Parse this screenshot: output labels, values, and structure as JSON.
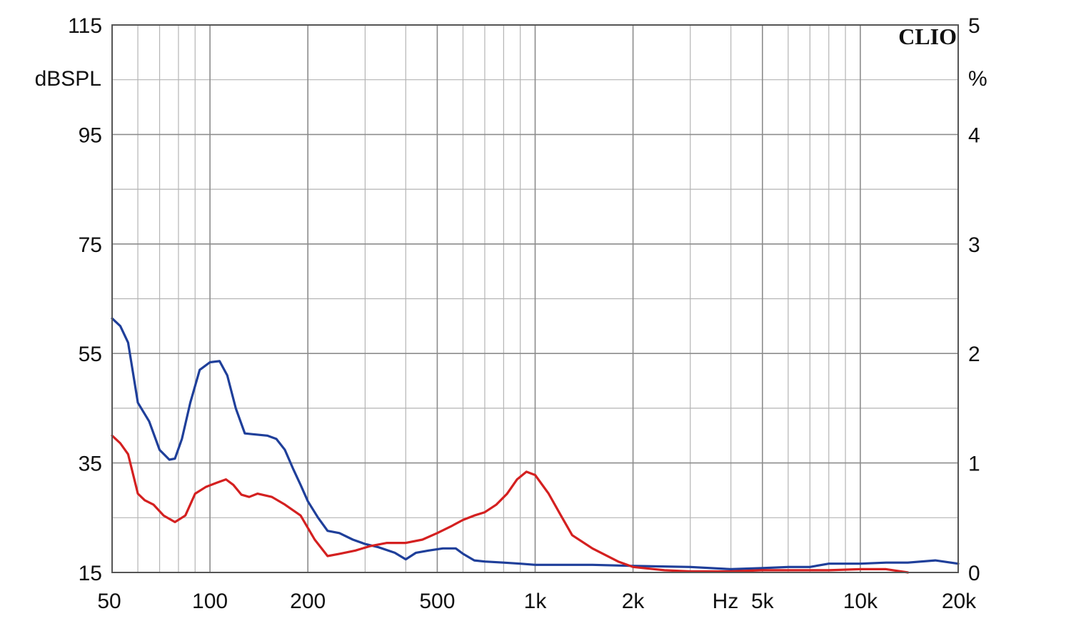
{
  "chart_data": {
    "type": "line",
    "brand": "CLIO",
    "xlabel": "Hz",
    "x_scale": "log",
    "xlim": [
      50,
      20000
    ],
    "x_major_ticks": [
      {
        "value": 50,
        "label": "50"
      },
      {
        "value": 100,
        "label": "100"
      },
      {
        "value": 200,
        "label": "200"
      },
      {
        "value": 500,
        "label": "500"
      },
      {
        "value": 1000,
        "label": "1k"
      },
      {
        "value": 2000,
        "label": "2k"
      },
      {
        "value": 5000,
        "label": "5k"
      },
      {
        "value": 10000,
        "label": "10k"
      },
      {
        "value": 20000,
        "label": "20k"
      }
    ],
    "left_axis": {
      "label": "dBSPL",
      "range": [
        15,
        115
      ],
      "ticks": [
        "115",
        "95",
        "75",
        "55",
        "35",
        "15"
      ]
    },
    "right_axis": {
      "label": "%",
      "range": [
        0,
        5
      ],
      "ticks": [
        "5",
        "4",
        "3",
        "2",
        "1",
        "0"
      ]
    },
    "grid": true,
    "series": [
      {
        "color": "#1f3f9a",
        "axis": "right",
        "x": [
          50,
          53,
          56,
          60,
          65,
          70,
          75,
          78,
          82,
          87,
          93,
          100,
          107,
          113,
          120,
          128,
          138,
          150,
          160,
          170,
          180,
          190,
          200,
          215,
          230,
          250,
          275,
          300,
          330,
          370,
          400,
          430,
          470,
          520,
          570,
          600,
          650,
          700,
          800,
          900,
          1000,
          1200,
          1500,
          2000,
          3000,
          4000,
          5000,
          6000,
          7000,
          8000,
          10000,
          12000,
          14000,
          17000,
          20000
        ],
        "y": [
          2.32,
          2.25,
          2.1,
          1.55,
          1.38,
          1.12,
          1.03,
          1.04,
          1.22,
          1.55,
          1.85,
          1.92,
          1.93,
          1.8,
          1.5,
          1.27,
          1.26,
          1.25,
          1.22,
          1.12,
          0.95,
          0.8,
          0.65,
          0.5,
          0.38,
          0.36,
          0.3,
          0.26,
          0.23,
          0.18,
          0.12,
          0.18,
          0.2,
          0.22,
          0.22,
          0.17,
          0.11,
          0.1,
          0.09,
          0.08,
          0.07,
          0.07,
          0.07,
          0.06,
          0.05,
          0.03,
          0.04,
          0.05,
          0.05,
          0.08,
          0.08,
          0.09,
          0.09,
          0.11,
          0.08
        ]
      },
      {
        "color": "#d42020",
        "axis": "right",
        "x": [
          50,
          53,
          56,
          60,
          63,
          67,
          72,
          78,
          84,
          90,
          97,
          105,
          112,
          118,
          125,
          132,
          140,
          155,
          170,
          190,
          210,
          230,
          250,
          280,
          310,
          350,
          400,
          450,
          500,
          550,
          600,
          650,
          700,
          760,
          820,
          880,
          940,
          1000,
          1100,
          1200,
          1300,
          1500,
          1800,
          2000,
          2500,
          3000,
          4000,
          5000,
          6000,
          8000,
          10000,
          12000,
          14000
        ],
        "y": [
          1.25,
          1.18,
          1.08,
          0.72,
          0.66,
          0.62,
          0.52,
          0.46,
          0.52,
          0.72,
          0.78,
          0.82,
          0.85,
          0.8,
          0.71,
          0.69,
          0.72,
          0.69,
          0.62,
          0.52,
          0.3,
          0.15,
          0.17,
          0.2,
          0.24,
          0.27,
          0.27,
          0.3,
          0.36,
          0.42,
          0.48,
          0.52,
          0.55,
          0.62,
          0.72,
          0.85,
          0.92,
          0.89,
          0.72,
          0.52,
          0.34,
          0.22,
          0.1,
          0.05,
          0.02,
          0.01,
          0.01,
          0.02,
          0.02,
          0.02,
          0.03,
          0.03,
          0.0
        ]
      }
    ]
  }
}
